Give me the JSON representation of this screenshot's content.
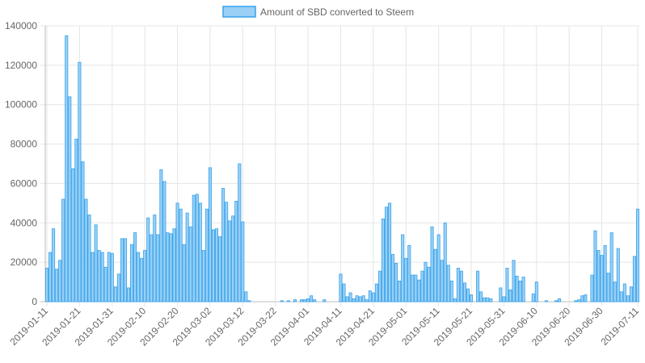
{
  "chart_data": {
    "type": "bar",
    "title": "",
    "xlabel": "",
    "ylabel": "",
    "ylim": [
      0,
      140000
    ],
    "y_ticks": [
      "0",
      "20000",
      "40000",
      "60000",
      "80000",
      "100000",
      "120000",
      "140000"
    ],
    "legend": {
      "position": "top",
      "label": "Amount of SBD converted to Steem"
    },
    "grid": true,
    "colors": {
      "bar_fill": "#9ad0f5",
      "bar_border": "#36a2eb",
      "grid": "#e5e5e5",
      "axis": "#bdbdbd"
    },
    "date_ticks": [
      "2019-01-11",
      "2019-01-21",
      "2019-01-31",
      "2019-02-10",
      "2019-02-20",
      "2019-03-02",
      "2019-03-12",
      "2019-03-22",
      "2019-04-01",
      "2019-04-11",
      "2019-04-21",
      "2019-05-01",
      "2019-05-11",
      "2019-05-21",
      "2019-05-31",
      "2019-06-10",
      "2019-06-20",
      "2019-06-30",
      "2019-07-11"
    ],
    "categories": [
      "2019-01-11",
      "2019-01-12",
      "2019-01-13",
      "2019-01-14",
      "2019-01-15",
      "2019-01-16",
      "2019-01-17",
      "2019-01-18",
      "2019-01-19",
      "2019-01-20",
      "2019-01-21",
      "2019-01-22",
      "2019-01-23",
      "2019-01-24",
      "2019-01-25",
      "2019-01-26",
      "2019-01-27",
      "2019-01-28",
      "2019-01-29",
      "2019-01-30",
      "2019-01-31",
      "2019-02-01",
      "2019-02-02",
      "2019-02-03",
      "2019-02-04",
      "2019-02-05",
      "2019-02-06",
      "2019-02-07",
      "2019-02-08",
      "2019-02-09",
      "2019-02-10",
      "2019-02-11",
      "2019-02-12",
      "2019-02-13",
      "2019-02-14",
      "2019-02-15",
      "2019-02-16",
      "2019-02-17",
      "2019-02-18",
      "2019-02-19",
      "2019-02-20",
      "2019-02-21",
      "2019-02-22",
      "2019-02-23",
      "2019-02-24",
      "2019-02-25",
      "2019-02-26",
      "2019-02-27",
      "2019-02-28",
      "2019-03-01",
      "2019-03-02",
      "2019-03-03",
      "2019-03-04",
      "2019-03-05",
      "2019-03-06",
      "2019-03-07",
      "2019-03-08",
      "2019-03-09",
      "2019-03-10",
      "2019-03-11",
      "2019-03-12",
      "2019-03-13",
      "2019-03-14",
      "2019-03-15",
      "2019-03-16",
      "2019-03-17",
      "2019-03-18",
      "2019-03-19",
      "2019-03-20",
      "2019-03-21",
      "2019-03-22",
      "2019-03-23",
      "2019-03-24",
      "2019-03-25",
      "2019-03-26",
      "2019-03-27",
      "2019-03-28",
      "2019-03-29",
      "2019-03-30",
      "2019-03-31",
      "2019-04-01",
      "2019-04-02",
      "2019-04-03",
      "2019-04-04",
      "2019-04-05",
      "2019-04-06",
      "2019-04-07",
      "2019-04-08",
      "2019-04-09",
      "2019-04-10",
      "2019-04-11",
      "2019-04-12",
      "2019-04-13",
      "2019-04-14",
      "2019-04-15",
      "2019-04-16",
      "2019-04-17",
      "2019-04-18",
      "2019-04-19",
      "2019-04-20",
      "2019-04-21",
      "2019-04-22",
      "2019-04-23",
      "2019-04-24",
      "2019-04-25",
      "2019-04-26",
      "2019-04-27",
      "2019-04-28",
      "2019-04-29",
      "2019-04-30",
      "2019-05-01",
      "2019-05-02",
      "2019-05-03",
      "2019-05-04",
      "2019-05-05",
      "2019-05-06",
      "2019-05-07",
      "2019-05-08",
      "2019-05-09",
      "2019-05-10",
      "2019-05-11",
      "2019-05-12",
      "2019-05-13",
      "2019-05-14",
      "2019-05-15",
      "2019-05-16",
      "2019-05-17",
      "2019-05-18",
      "2019-05-19",
      "2019-05-20",
      "2019-05-21",
      "2019-05-22",
      "2019-05-23",
      "2019-05-24",
      "2019-05-25",
      "2019-05-26",
      "2019-05-27",
      "2019-05-28",
      "2019-05-29",
      "2019-05-30",
      "2019-05-31",
      "2019-06-01",
      "2019-06-02",
      "2019-06-03",
      "2019-06-04",
      "2019-06-05",
      "2019-06-06",
      "2019-06-07",
      "2019-06-08",
      "2019-06-09",
      "2019-06-10",
      "2019-06-11",
      "2019-06-12",
      "2019-06-13",
      "2019-06-14",
      "2019-06-15",
      "2019-06-16",
      "2019-06-17",
      "2019-06-18",
      "2019-06-19",
      "2019-06-20",
      "2019-06-21",
      "2019-06-22",
      "2019-06-23",
      "2019-06-24",
      "2019-06-25",
      "2019-06-26",
      "2019-06-27",
      "2019-06-28",
      "2019-06-29",
      "2019-06-30",
      "2019-07-01",
      "2019-07-02",
      "2019-07-03",
      "2019-07-04",
      "2019-07-05",
      "2019-07-06",
      "2019-07-07",
      "2019-07-08",
      "2019-07-09",
      "2019-07-10",
      "2019-07-11"
    ],
    "series": [
      {
        "name": "Amount of SBD converted to Steem",
        "values": [
          17000,
          25000,
          37000,
          16500,
          21000,
          52000,
          135000,
          104000,
          67500,
          82500,
          121500,
          71000,
          52000,
          44000,
          25000,
          39000,
          26000,
          25000,
          17500,
          25000,
          24500,
          7500,
          14000,
          32000,
          32000,
          7000,
          29000,
          35000,
          25000,
          22000,
          26000,
          42500,
          34000,
          44000,
          34000,
          67000,
          61000,
          35000,
          34500,
          37000,
          50000,
          47000,
          29000,
          45000,
          38000,
          54000,
          54500,
          50000,
          26000,
          47000,
          68000,
          36500,
          37000,
          33000,
          57500,
          50500,
          41000,
          43500,
          51000,
          70000,
          40500,
          5000,
          500,
          0,
          0,
          0,
          0,
          0,
          0,
          0,
          0,
          0,
          500,
          0,
          500,
          0,
          1000,
          0,
          1000,
          1000,
          1500,
          3000,
          1000,
          0,
          0,
          1000,
          0,
          0,
          0,
          0,
          14000,
          9000,
          2500,
          4500,
          1500,
          3000,
          2500,
          3000,
          1000,
          5500,
          4500,
          9000,
          15500,
          42000,
          48000,
          50000,
          24000,
          19500,
          10500,
          34000,
          22000,
          28500,
          13500,
          13500,
          11000,
          15500,
          20000,
          17500,
          38000,
          26500,
          34000,
          21000,
          40000,
          18500,
          10500,
          1500,
          17000,
          15500,
          9500,
          6500,
          3500,
          0,
          15500,
          5000,
          2000,
          2000,
          1500,
          0,
          0,
          7000,
          2500,
          17000,
          6000,
          21000,
          13000,
          10500,
          12500,
          0,
          0,
          4000,
          10000,
          0,
          0,
          500,
          0,
          0,
          500,
          1500,
          0,
          0,
          0,
          0,
          500,
          1000,
          3000,
          3500,
          0,
          13500,
          36000,
          26000,
          23500,
          28500,
          14500,
          35000,
          10000,
          27000,
          5000,
          9000,
          3000,
          7500,
          23000,
          47000
        ]
      }
    ]
  }
}
